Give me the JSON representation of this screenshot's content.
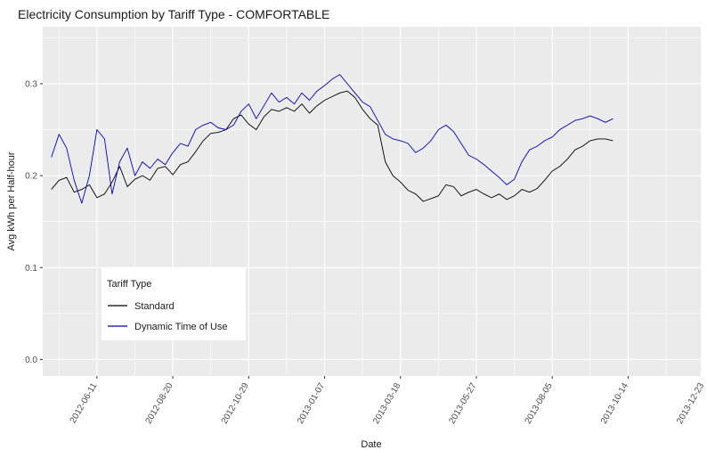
{
  "chart_data": {
    "type": "line",
    "title": "Electricity Consumption by Tariff Type - COMFORTABLE",
    "xlabel": "Date",
    "ylabel": "Avg kWh per Half-hour",
    "x_range": [
      "2012-04-22",
      "2013-12-20"
    ],
    "ylim": [
      -0.018,
      0.362
    ],
    "x_ticks": [
      "2012-06-11",
      "2012-08-20",
      "2012-10-29",
      "2013-01-07",
      "2013-03-18",
      "2013-05-27",
      "2013-08-05",
      "2013-10-14",
      "2013-12-23"
    ],
    "y_ticks": [
      {
        "value": 0.0,
        "label": "0.0"
      },
      {
        "value": 0.1,
        "label": "0.1"
      },
      {
        "value": 0.2,
        "label": "0.2"
      },
      {
        "value": 0.3,
        "label": "0.3"
      }
    ],
    "grid": true,
    "x_tick_label_rotation": -60,
    "legend": {
      "title": "Tariff Type",
      "position": "bottom-left-inside"
    },
    "series": [
      {
        "name": "Standard",
        "color": "#000000",
        "date_step_days": 7,
        "start_date": "2012-04-30",
        "values": [
          0.185,
          0.195,
          0.198,
          0.182,
          0.185,
          0.19,
          0.176,
          0.18,
          0.193,
          0.21,
          0.188,
          0.196,
          0.2,
          0.195,
          0.208,
          0.21,
          0.201,
          0.212,
          0.215,
          0.226,
          0.238,
          0.246,
          0.247,
          0.25,
          0.262,
          0.266,
          0.256,
          0.25,
          0.264,
          0.272,
          0.27,
          0.274,
          0.27,
          0.278,
          0.268,
          0.276,
          0.282,
          0.286,
          0.29,
          0.292,
          0.285,
          0.272,
          0.262,
          0.255,
          0.215,
          0.2,
          0.193,
          0.184,
          0.18,
          0.172,
          0.175,
          0.178,
          0.19,
          0.188,
          0.178,
          0.182,
          0.185,
          0.18,
          0.176,
          0.18,
          0.174,
          0.178,
          0.185,
          0.182,
          0.186,
          0.195,
          0.205,
          0.21,
          0.218,
          0.228,
          0.232,
          0.238,
          0.24,
          0.24,
          0.238
        ]
      },
      {
        "name": "Dynamic Time of Use",
        "color": "#0000cc",
        "date_step_days": 7,
        "start_date": "2012-04-30",
        "values": [
          0.22,
          0.245,
          0.23,
          0.195,
          0.17,
          0.2,
          0.25,
          0.24,
          0.18,
          0.215,
          0.23,
          0.2,
          0.215,
          0.208,
          0.218,
          0.212,
          0.225,
          0.235,
          0.232,
          0.25,
          0.255,
          0.258,
          0.252,
          0.25,
          0.255,
          0.27,
          0.278,
          0.262,
          0.276,
          0.29,
          0.28,
          0.285,
          0.278,
          0.29,
          0.282,
          0.292,
          0.298,
          0.305,
          0.31,
          0.3,
          0.29,
          0.28,
          0.275,
          0.26,
          0.245,
          0.24,
          0.238,
          0.235,
          0.225,
          0.23,
          0.238,
          0.25,
          0.255,
          0.248,
          0.235,
          0.222,
          0.218,
          0.212,
          0.205,
          0.198,
          0.19,
          0.196,
          0.215,
          0.228,
          0.232,
          0.238,
          0.242,
          0.25,
          0.255,
          0.26,
          0.262,
          0.265,
          0.262,
          0.258,
          0.262
        ]
      }
    ]
  }
}
